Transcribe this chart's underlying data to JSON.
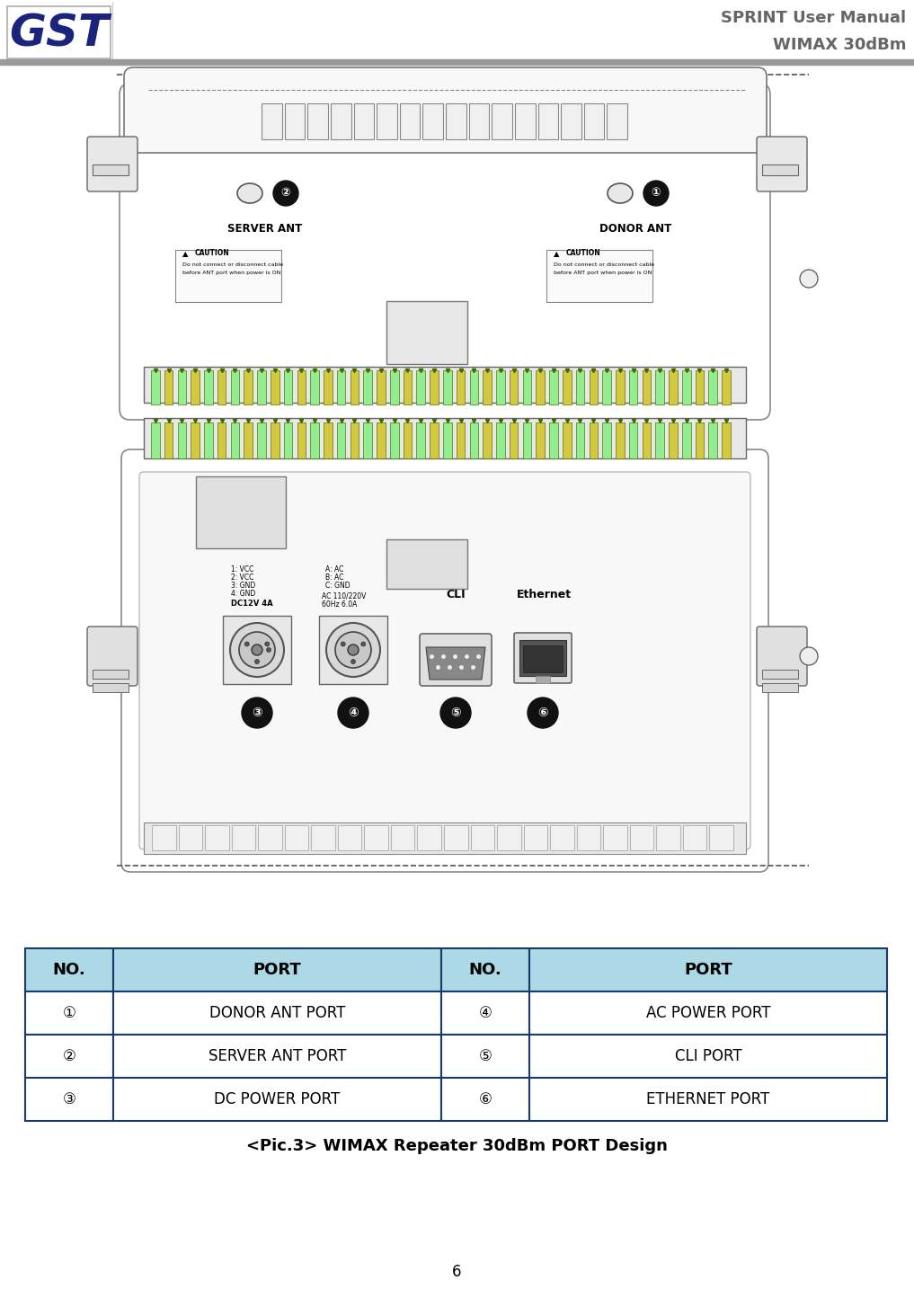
{
  "title_line1": "SPRINT User Manual",
  "title_line2": "WIMAX 30dBm",
  "table_header_color": "#ADD8E6",
  "table_border_color": "#1a3a6b",
  "table_data": [
    [
      "①",
      "DONOR ANT PORT",
      "④",
      "AC POWER PORT"
    ],
    [
      "②",
      "SERVER ANT PORT",
      "⑤",
      "CLI PORT"
    ],
    [
      "③",
      "DC POWER PORT",
      "⑥",
      "ETHERNET PORT"
    ]
  ],
  "table_col_header": [
    "NO.",
    "PORT",
    "NO.",
    "PORT"
  ],
  "caption": "<Pic.3> WIMAX Repeater 30dBm PORT Design",
  "page_num": "6",
  "gst_logo_color": "#1a237e",
  "header_bar_color": "#999999",
  "bg_color": "#ffffff",
  "device_color": "#f0f0f0",
  "device_edge": "#555555",
  "pin_green": "#90EE90",
  "pin_yellow": "#d4c840",
  "badge_black": "#111111"
}
